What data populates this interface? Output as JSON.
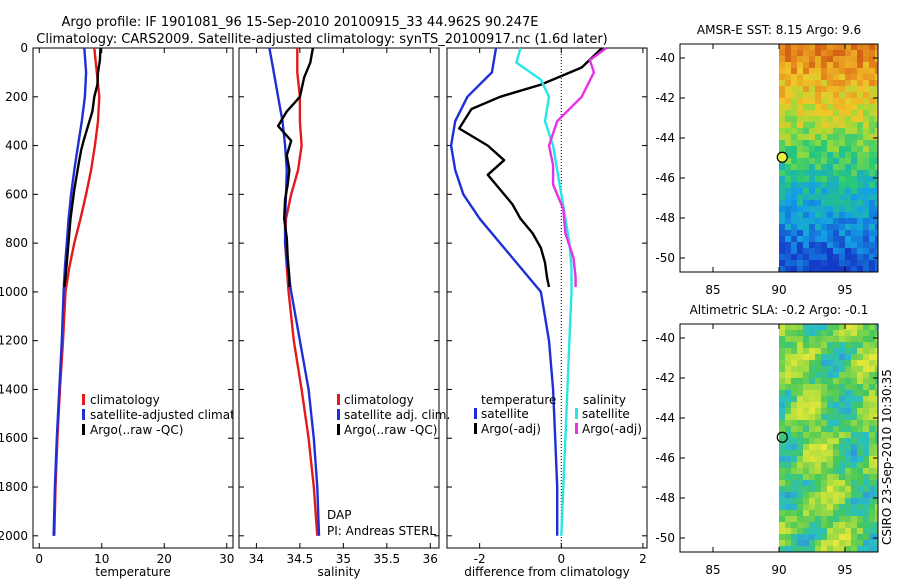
{
  "title": {
    "line1": "Argo profile: IF 1901081_96 15-Sep-2010 20100915_33 44.962S 90.247E",
    "line2": "Climatology: CARS2009. Satellite-adjusted climatology: synTS_20100917.nc (1.6d later)"
  },
  "side_text": "CSIRO 23-Sep-2010 10:30:35",
  "colors": {
    "red": "#e41a1a",
    "blue": "#1f2fd6",
    "black": "#000000",
    "cyan": "#28e6e6",
    "magenta": "#e632e6"
  },
  "chart_data": [
    {
      "type": "line",
      "xlabel": "temperature",
      "xlim": [
        -1,
        31
      ],
      "ylim": [
        2050,
        0
      ],
      "xticks": [
        0,
        10,
        20,
        30
      ],
      "yticks": [
        0,
        200,
        400,
        600,
        800,
        1000,
        1200,
        1400,
        1600,
        1800,
        2000
      ],
      "legend": [
        "climatology",
        "satellite-adjusted climatology",
        "Argo(..raw -QC)"
      ],
      "series": [
        {
          "name": "climatology",
          "color": "red",
          "points": [
            [
              8.8,
              0
            ],
            [
              9.2,
              100
            ],
            [
              9.6,
              200
            ],
            [
              9.4,
              300
            ],
            [
              8.9,
              400
            ],
            [
              8.3,
              500
            ],
            [
              7.5,
              600
            ],
            [
              6.6,
              700
            ],
            [
              5.6,
              800
            ],
            [
              4.8,
              900
            ],
            [
              4.2,
              1000
            ],
            [
              3.8,
              1200
            ],
            [
              3.3,
              1400
            ],
            [
              2.9,
              1600
            ],
            [
              2.6,
              1800
            ],
            [
              2.4,
              2000
            ]
          ]
        },
        {
          "name": "satellite-adjusted climatology",
          "color": "blue",
          "points": [
            [
              7.2,
              0
            ],
            [
              7.5,
              100
            ],
            [
              7.3,
              200
            ],
            [
              6.8,
              300
            ],
            [
              6.2,
              400
            ],
            [
              5.6,
              500
            ],
            [
              5.1,
              600
            ],
            [
              4.7,
              700
            ],
            [
              4.4,
              800
            ],
            [
              4.1,
              900
            ],
            [
              3.9,
              1000
            ],
            [
              3.6,
              1200
            ],
            [
              3.2,
              1400
            ],
            [
              2.8,
              1600
            ],
            [
              2.5,
              1800
            ],
            [
              2.3,
              2000
            ]
          ]
        },
        {
          "name": "Argo(..raw -QC)",
          "color": "black",
          "points": [
            [
              9.8,
              0
            ],
            [
              9.7,
              50
            ],
            [
              9.4,
              100
            ],
            [
              9.3,
              150
            ],
            [
              8.8,
              200
            ],
            [
              8.5,
              260
            ],
            [
              7.8,
              320
            ],
            [
              7.1,
              380
            ],
            [
              6.7,
              420
            ],
            [
              6.4,
              460
            ],
            [
              6.0,
              520
            ],
            [
              5.6,
              580
            ],
            [
              5.3,
              640
            ],
            [
              5.0,
              700
            ],
            [
              4.8,
              760
            ],
            [
              4.6,
              820
            ],
            [
              4.4,
              880
            ],
            [
              4.2,
              940
            ],
            [
              4.0,
              980
            ]
          ]
        }
      ]
    },
    {
      "type": "line",
      "xlabel": "salinity",
      "xlim": [
        33.8,
        36.1
      ],
      "ylim": [
        2050,
        0
      ],
      "xticks": [
        34,
        34.5,
        35,
        35.5,
        36
      ],
      "legend": [
        "climatology",
        "satellite adj. clim.",
        "Argo(..raw -QC)"
      ],
      "annotations": [
        "DAP",
        "PI: Andreas STERL"
      ],
      "series": [
        {
          "name": "climatology",
          "color": "red",
          "points": [
            [
              34.47,
              0
            ],
            [
              34.47,
              100
            ],
            [
              34.5,
              200
            ],
            [
              34.5,
              300
            ],
            [
              34.52,
              400
            ],
            [
              34.48,
              500
            ],
            [
              34.4,
              600
            ],
            [
              34.34,
              700
            ],
            [
              34.33,
              800
            ],
            [
              34.35,
              900
            ],
            [
              34.37,
              1000
            ],
            [
              34.43,
              1200
            ],
            [
              34.52,
              1400
            ],
            [
              34.6,
              1600
            ],
            [
              34.66,
              1800
            ],
            [
              34.7,
              2000
            ]
          ]
        },
        {
          "name": "satellite adj. clim.",
          "color": "blue",
          "points": [
            [
              34.15,
              0
            ],
            [
              34.2,
              100
            ],
            [
              34.25,
              200
            ],
            [
              34.3,
              300
            ],
            [
              34.33,
              400
            ],
            [
              34.35,
              500
            ],
            [
              34.34,
              600
            ],
            [
              34.33,
              700
            ],
            [
              34.33,
              800
            ],
            [
              34.36,
              900
            ],
            [
              34.4,
              1000
            ],
            [
              34.5,
              1200
            ],
            [
              34.6,
              1400
            ],
            [
              34.66,
              1600
            ],
            [
              34.7,
              1800
            ],
            [
              34.72,
              2000
            ]
          ]
        },
        {
          "name": "Argo(..raw -QC)",
          "color": "black",
          "points": [
            [
              34.65,
              0
            ],
            [
              34.62,
              60
            ],
            [
              34.55,
              120
            ],
            [
              34.5,
              200
            ],
            [
              34.35,
              260
            ],
            [
              34.25,
              320
            ],
            [
              34.4,
              380
            ],
            [
              34.35,
              440
            ],
            [
              34.38,
              500
            ],
            [
              34.36,
              560
            ],
            [
              34.33,
              620
            ],
            [
              34.32,
              700
            ],
            [
              34.35,
              780
            ],
            [
              34.36,
              860
            ],
            [
              34.38,
              940
            ],
            [
              34.38,
              980
            ]
          ]
        }
      ]
    },
    {
      "type": "line",
      "xlabel": "difference from climatology",
      "xlim": [
        -2.8,
        2.1
      ],
      "ylim": [
        2050,
        0
      ],
      "xticks": [
        -2,
        0,
        2
      ],
      "legend": {
        "temperature": [
          "satellite",
          "Argo(-adj)"
        ],
        "salinity": [
          "satellite",
          "Argo(-adj)"
        ]
      },
      "series": [
        {
          "name": "temperature satellite",
          "color": "blue",
          "points": [
            [
              -1.6,
              0
            ],
            [
              -1.7,
              100
            ],
            [
              -2.3,
              200
            ],
            [
              -2.6,
              300
            ],
            [
              -2.7,
              400
            ],
            [
              -2.6,
              500
            ],
            [
              -2.4,
              600
            ],
            [
              -2.0,
              700
            ],
            [
              -1.5,
              800
            ],
            [
              -1.0,
              900
            ],
            [
              -0.5,
              1000
            ],
            [
              -0.3,
              1200
            ],
            [
              -0.2,
              1400
            ],
            [
              -0.15,
              1600
            ],
            [
              -0.1,
              1800
            ],
            [
              -0.1,
              2000
            ]
          ]
        },
        {
          "name": "temperature Argo(-adj)",
          "color": "black",
          "points": [
            [
              1.0,
              0
            ],
            [
              0.5,
              80
            ],
            [
              -0.5,
              150
            ],
            [
              -1.5,
              200
            ],
            [
              -2.2,
              250
            ],
            [
              -2.5,
              330
            ],
            [
              -1.8,
              400
            ],
            [
              -1.4,
              460
            ],
            [
              -1.8,
              520
            ],
            [
              -1.5,
              580
            ],
            [
              -1.2,
              640
            ],
            [
              -1.0,
              700
            ],
            [
              -0.7,
              760
            ],
            [
              -0.5,
              820
            ],
            [
              -0.4,
              880
            ],
            [
              -0.35,
              940
            ],
            [
              -0.3,
              980
            ]
          ]
        },
        {
          "name": "salinity satellite",
          "color": "cyan",
          "points": [
            [
              -1.0,
              0
            ],
            [
              -1.1,
              60
            ],
            [
              -0.5,
              130
            ],
            [
              -0.3,
              200
            ],
            [
              -0.4,
              300
            ],
            [
              -0.2,
              400
            ],
            [
              -0.1,
              500
            ],
            [
              0.0,
              600
            ],
            [
              0.1,
              700
            ],
            [
              0.2,
              800
            ],
            [
              0.25,
              900
            ],
            [
              0.25,
              1000
            ],
            [
              0.2,
              1200
            ],
            [
              0.15,
              1400
            ],
            [
              0.1,
              1600
            ],
            [
              0.05,
              1800
            ],
            [
              0.0,
              2000
            ]
          ]
        },
        {
          "name": "salinity Argo(-adj)",
          "color": "magenta",
          "points": [
            [
              1.1,
              0
            ],
            [
              0.7,
              50
            ],
            [
              0.8,
              100
            ],
            [
              0.5,
              200
            ],
            [
              -0.1,
              300
            ],
            [
              -0.3,
              400
            ],
            [
              -0.2,
              480
            ],
            [
              -0.2,
              560
            ],
            [
              0.05,
              660
            ],
            [
              0.1,
              760
            ],
            [
              0.3,
              860
            ],
            [
              0.35,
              940
            ],
            [
              0.35,
              980
            ]
          ]
        }
      ]
    },
    {
      "type": "heatmap",
      "title": "AMSR-E SST: 8.15 Argo: 9.6",
      "xlim": [
        82.5,
        97.5
      ],
      "ylim": [
        -50.7,
        -39.3
      ],
      "xticks": [
        85,
        90,
        95
      ],
      "yticks": [
        -40,
        -42,
        -44,
        -46,
        -48,
        -50
      ],
      "data_extent_x": [
        90,
        97.5
      ],
      "marker": {
        "lon": 90.247,
        "lat": -44.962
      }
    },
    {
      "type": "heatmap",
      "title": "Altimetric SLA: -0.2 Argo: -0.1",
      "xlim": [
        82.5,
        97.5
      ],
      "ylim": [
        -50.7,
        -39.3
      ],
      "xticks": [
        85,
        90,
        95
      ],
      "yticks": [
        -40,
        -42,
        -44,
        -46,
        -48,
        -50
      ],
      "data_extent_x": [
        90,
        97.5
      ],
      "marker": {
        "lon": 90.247,
        "lat": -44.962
      }
    }
  ]
}
